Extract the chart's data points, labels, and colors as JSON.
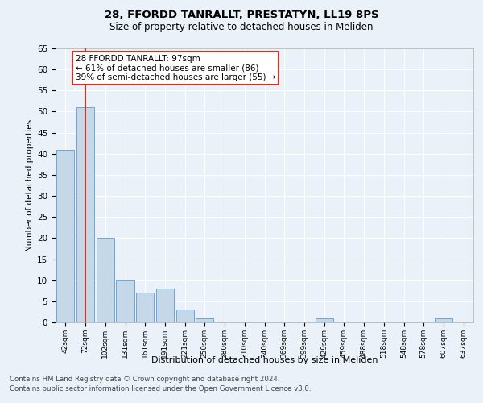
{
  "title1": "28, FFORDD TANRALLT, PRESTATYN, LL19 8PS",
  "title2": "Size of property relative to detached houses in Meliden",
  "xlabel": "Distribution of detached houses by size in Meliden",
  "ylabel": "Number of detached properties",
  "categories": [
    "42sqm",
    "72sqm",
    "102sqm",
    "131sqm",
    "161sqm",
    "191sqm",
    "221sqm",
    "250sqm",
    "280sqm",
    "310sqm",
    "340sqm",
    "369sqm",
    "399sqm",
    "429sqm",
    "459sqm",
    "488sqm",
    "518sqm",
    "548sqm",
    "578sqm",
    "607sqm",
    "637sqm"
  ],
  "values": [
    41,
    51,
    20,
    10,
    7,
    8,
    3,
    1,
    0,
    0,
    0,
    0,
    0,
    1,
    0,
    0,
    0,
    0,
    0,
    1,
    0
  ],
  "bar_color": "#c5d8e8",
  "bar_edge_color": "#5b9bd5",
  "vline_x_index": 1,
  "vline_color": "#c0392b",
  "annotation_text": "28 FFORDD TANRALLT: 97sqm\n← 61% of detached houses are smaller (86)\n39% of semi-detached houses are larger (55) →",
  "annotation_box_color": "white",
  "annotation_box_edge_color": "#c0392b",
  "ylim": [
    0,
    65
  ],
  "yticks": [
    0,
    5,
    10,
    15,
    20,
    25,
    30,
    35,
    40,
    45,
    50,
    55,
    60,
    65
  ],
  "footer_line1": "Contains HM Land Registry data © Crown copyright and database right 2024.",
  "footer_line2": "Contains public sector information licensed under the Open Government Licence v3.0.",
  "bg_color": "#eaf1f8",
  "plot_bg_color": "#eaf1f8"
}
